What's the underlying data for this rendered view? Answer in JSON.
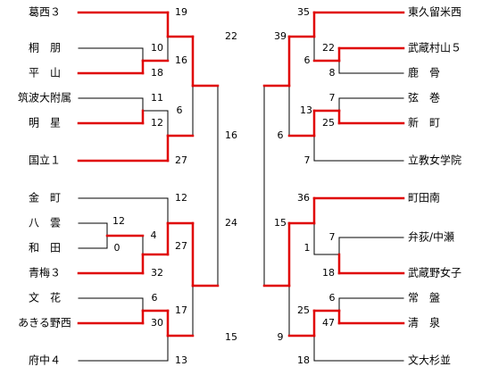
{
  "left": {
    "teams": [
      "葛西３",
      "桐　朋",
      "平　山",
      "筑波大附属",
      "明　星",
      "国立１",
      "金　町",
      "八　雲",
      "和　田",
      "青梅３",
      "文　花",
      "あきる野西",
      "府中４"
    ],
    "scores": [
      19,
      10,
      16,
      18,
      22,
      11,
      6,
      12,
      16,
      27,
      12,
      24,
      12,
      4,
      27,
      0,
      32,
      6,
      17,
      30,
      15,
      13
    ]
  },
  "right": {
    "teams": [
      "東久留米西",
      "武蔵村山５",
      "鹿　骨",
      "弦　巻",
      "新　町",
      "立教女学院",
      "町田南",
      "弁荻/中瀬",
      "武蔵野女子",
      "常　盤",
      "清　泉",
      "文大杉並"
    ],
    "scores": [
      35,
      39,
      22,
      6,
      8,
      7,
      13,
      25,
      6,
      7,
      36,
      15,
      7,
      1,
      18,
      6,
      25,
      47,
      9,
      18
    ]
  }
}
